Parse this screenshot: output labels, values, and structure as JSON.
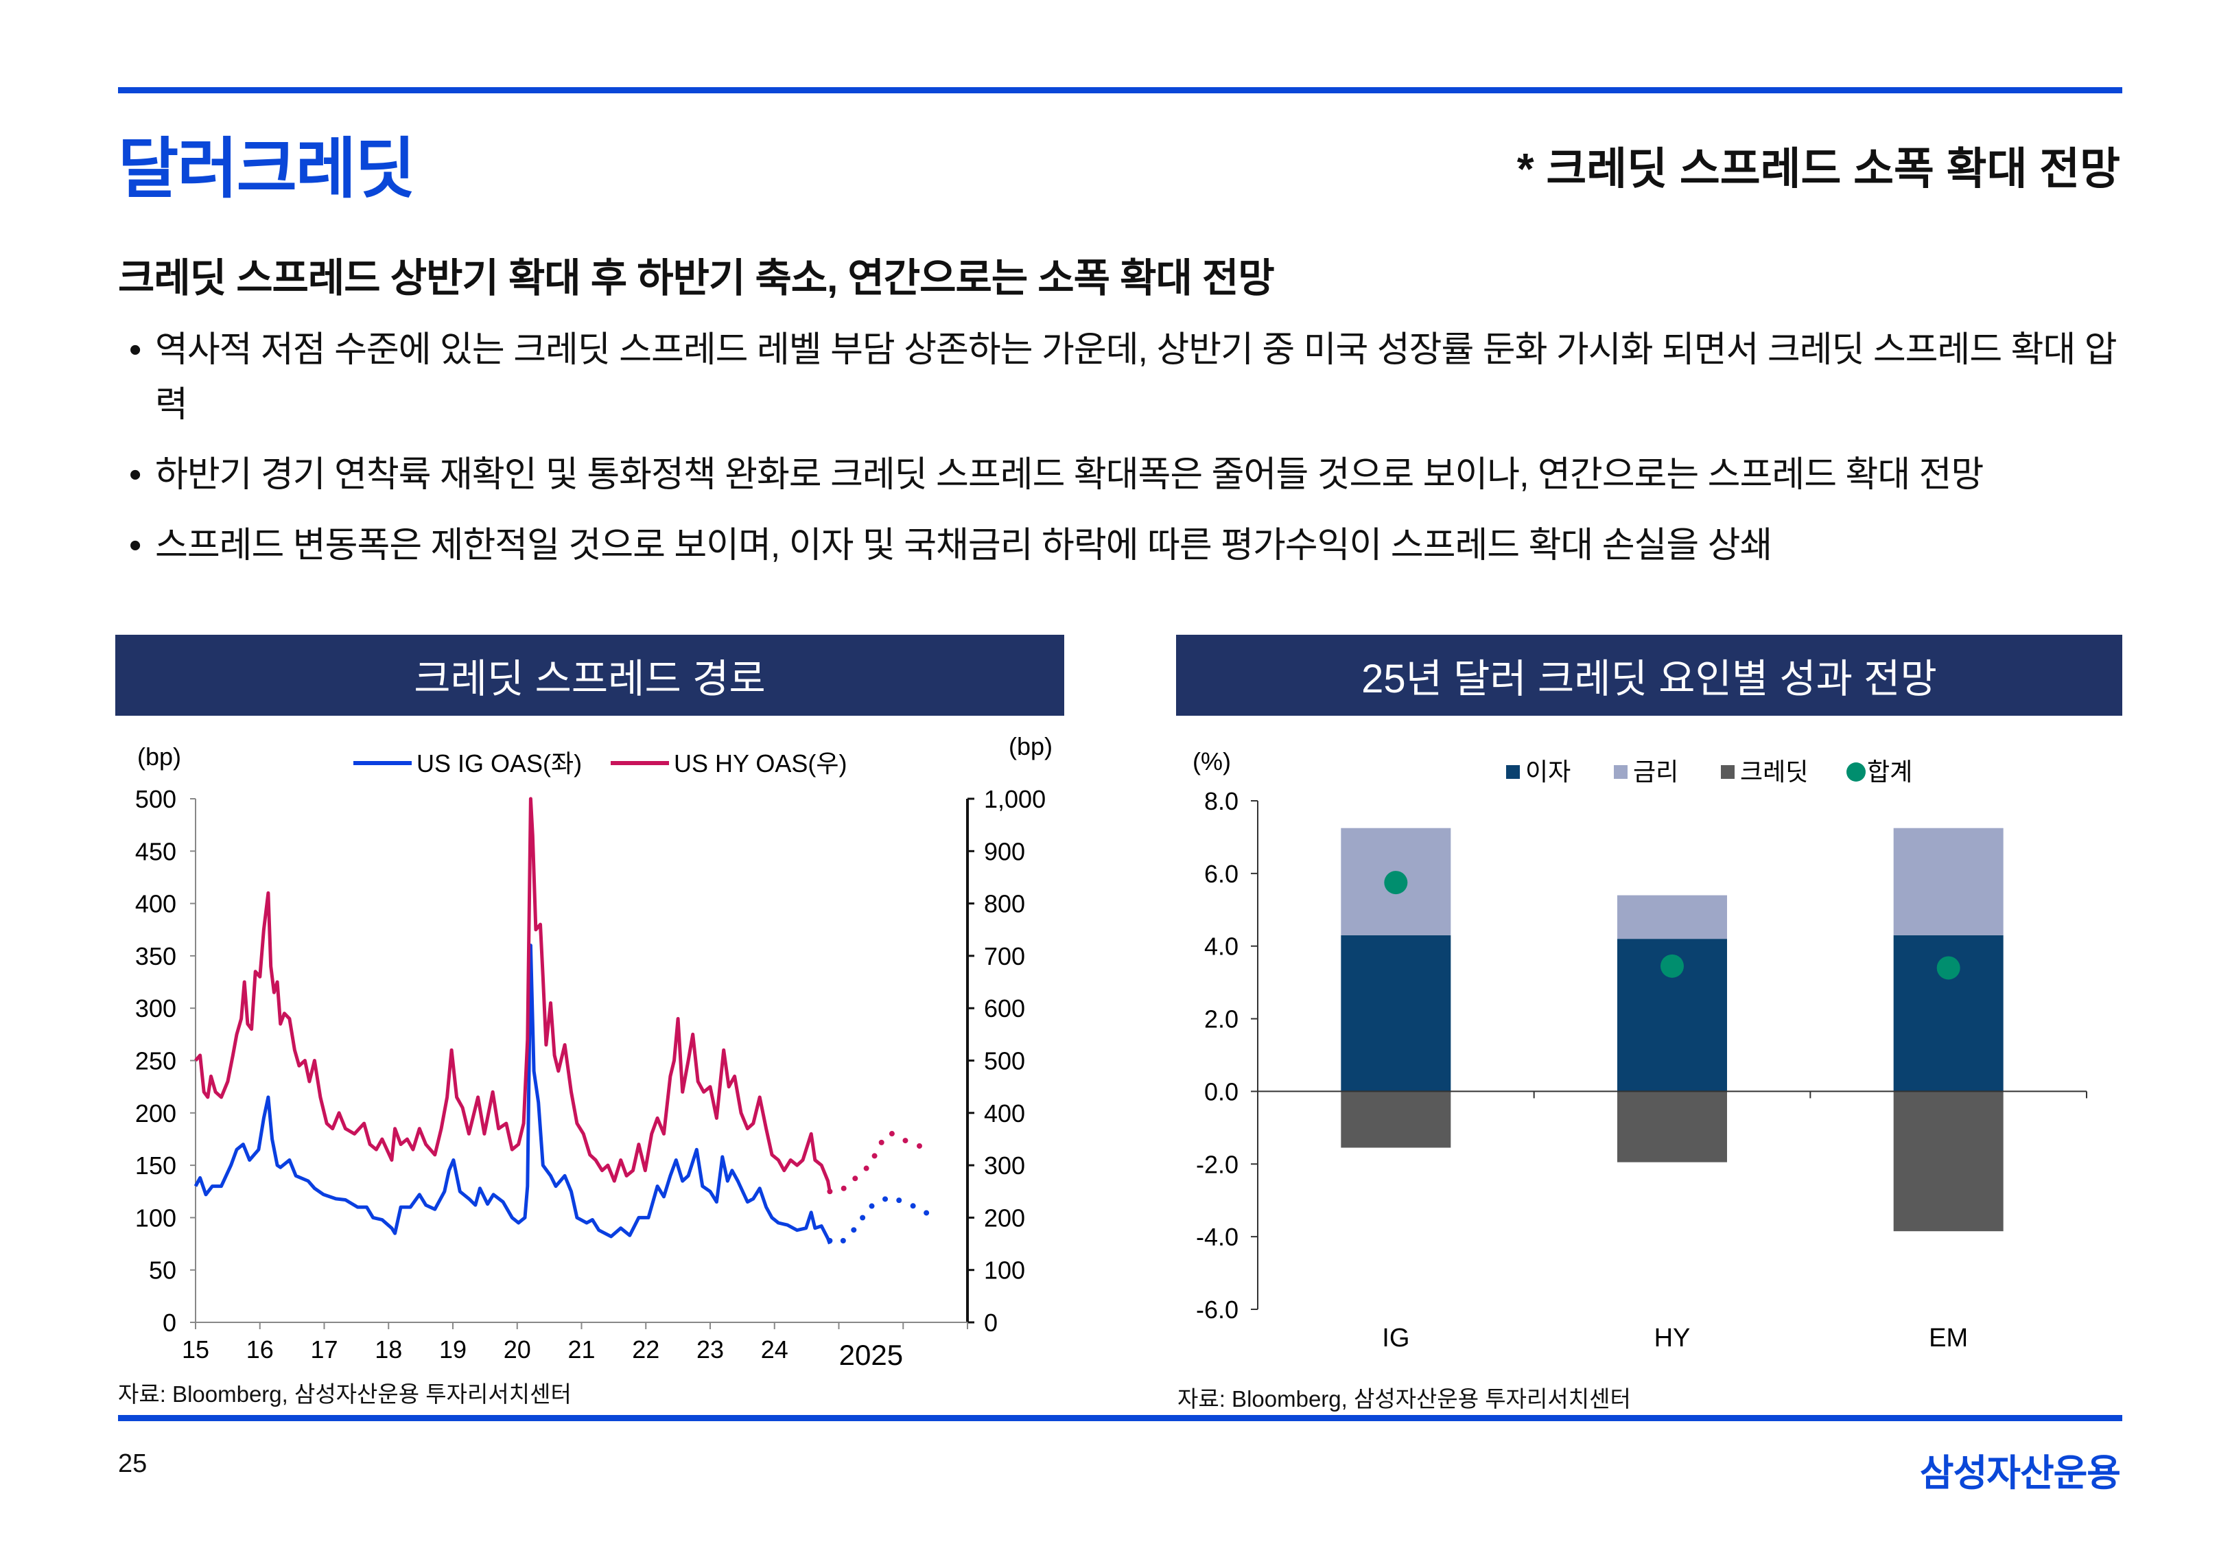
{
  "header": {
    "title": "달러크레딧",
    "tagline": "* 크레딧 스프레드 소폭 확대 전망"
  },
  "subtitle": "크레딧 스프레드 상반기 확대 후 하반기 축소, 연간으로는 소폭 확대 전망",
  "bullets": [
    {
      "marker": "•",
      "text": "역사적 저점 수준에 있는 크레딧 스프레드 레벨 부담 상존하는 가운데, 상반기 중 미국 성장률 둔화 가시화 되면서 크레딧 스프레드 확대 압력"
    },
    {
      "marker": "•",
      "text": "하반기 경기 연착륙 재확인 및 통화정책 완화로 크레딧 스프레드 확대폭은 줄어들 것으로 보이나, 연간으로는 스프레드 확대 전망"
    },
    {
      "marker": "•",
      "text": "스프레드 변동폭은 제한적일 것으로 보이며, 이자 및 국채금리 하락에 따른 평가수익이 스프레드 확대 손실을 상쇄"
    }
  ],
  "footer": {
    "page_number": "25",
    "logo": "삼성자산운용"
  },
  "colors": {
    "brand_blue": "#0a47d8",
    "header_navy": "#213366",
    "ig": "#0a3fe0",
    "hy": "#c8135a",
    "interest": "#0a416f",
    "rates": "#9ea7c7",
    "credit": "#5a5a5a",
    "total": "#008e6e"
  },
  "chart_data": [
    {
      "type": "line",
      "title": "크레딧 스프레드 경로",
      "source": "자료: Bloomberg, 삼성자산운용 투자리서치센터",
      "ylabel_left": "(bp)",
      "ylabel_right": "(bp)",
      "xlim": [
        2015,
        2027
      ],
      "ylim_left": [
        0,
        500
      ],
      "ylim_right": [
        0,
        1000
      ],
      "yticks_left": [
        "0",
        "50",
        "100",
        "150",
        "200",
        "250",
        "300",
        "350",
        "400",
        "450",
        "500"
      ],
      "yticks_right": [
        "0",
        "100",
        "200",
        "300",
        "400",
        "500",
        "600",
        "700",
        "800",
        "900",
        "1,000"
      ],
      "xticks": [
        {
          "x": 2015,
          "label": "15"
        },
        {
          "x": 2016,
          "label": "16"
        },
        {
          "x": 2017,
          "label": "17"
        },
        {
          "x": 2018,
          "label": "18"
        },
        {
          "x": 2019,
          "label": "19"
        },
        {
          "x": 2020,
          "label": "20"
        },
        {
          "x": 2021,
          "label": "21"
        },
        {
          "x": 2022,
          "label": "22"
        },
        {
          "x": 2023,
          "label": "23"
        },
        {
          "x": 2024,
          "label": "24"
        }
      ],
      "xtick_forecast_label": {
        "x": 2025.5,
        "label": "2025"
      },
      "grid": false,
      "legend_position": "top",
      "series": [
        {
          "name": "US IG OAS(좌)",
          "axis": "left",
          "points": [
            [
              2015.0,
              130
            ],
            [
              2015.07,
              138
            ],
            [
              2015.16,
              122
            ],
            [
              2015.26,
              130
            ],
            [
              2015.4,
              130
            ],
            [
              2015.55,
              150
            ],
            [
              2015.64,
              165
            ],
            [
              2015.74,
              170
            ],
            [
              2015.84,
              155
            ],
            [
              2015.98,
              165
            ],
            [
              2016.06,
              195
            ],
            [
              2016.13,
              215
            ],
            [
              2016.19,
              175
            ],
            [
              2016.27,
              150
            ],
            [
              2016.32,
              148
            ],
            [
              2016.46,
              155
            ],
            [
              2016.56,
              140
            ],
            [
              2016.75,
              135
            ],
            [
              2016.85,
              128
            ],
            [
              2016.99,
              122
            ],
            [
              2017.18,
              118
            ],
            [
              2017.33,
              117
            ],
            [
              2017.52,
              110
            ],
            [
              2017.66,
              110
            ],
            [
              2017.76,
              100
            ],
            [
              2017.9,
              98
            ],
            [
              2018.05,
              90
            ],
            [
              2018.1,
              85
            ],
            [
              2018.19,
              110
            ],
            [
              2018.34,
              110
            ],
            [
              2018.48,
              122
            ],
            [
              2018.58,
              112
            ],
            [
              2018.72,
              108
            ],
            [
              2018.87,
              125
            ],
            [
              2018.94,
              145
            ],
            [
              2019.01,
              155
            ],
            [
              2019.11,
              125
            ],
            [
              2019.25,
              118
            ],
            [
              2019.35,
              112
            ],
            [
              2019.42,
              128
            ],
            [
              2019.54,
              113
            ],
            [
              2019.63,
              122
            ],
            [
              2019.78,
              115
            ],
            [
              2019.92,
              100
            ],
            [
              2020.02,
              95
            ],
            [
              2020.12,
              100
            ],
            [
              2020.16,
              130
            ],
            [
              2020.21,
              360
            ],
            [
              2020.26,
              240
            ],
            [
              2020.33,
              210
            ],
            [
              2020.4,
              150
            ],
            [
              2020.52,
              140
            ],
            [
              2020.6,
              130
            ],
            [
              2020.74,
              140
            ],
            [
              2020.84,
              125
            ],
            [
              2020.93,
              100
            ],
            [
              2021.08,
              95
            ],
            [
              2021.17,
              98
            ],
            [
              2021.27,
              88
            ],
            [
              2021.46,
              82
            ],
            [
              2021.61,
              90
            ],
            [
              2021.75,
              83
            ],
            [
              2021.89,
              100
            ],
            [
              2022.04,
              100
            ],
            [
              2022.18,
              130
            ],
            [
              2022.28,
              120
            ],
            [
              2022.38,
              140
            ],
            [
              2022.47,
              155
            ],
            [
              2022.57,
              135
            ],
            [
              2022.66,
              140
            ],
            [
              2022.79,
              165
            ],
            [
              2022.88,
              130
            ],
            [
              2023.0,
              125
            ],
            [
              2023.1,
              115
            ],
            [
              2023.19,
              158
            ],
            [
              2023.27,
              135
            ],
            [
              2023.34,
              145
            ],
            [
              2023.43,
              135
            ],
            [
              2023.58,
              115
            ],
            [
              2023.67,
              118
            ],
            [
              2023.77,
              128
            ],
            [
              2023.87,
              110
            ],
            [
              2023.96,
              100
            ],
            [
              2024.06,
              95
            ],
            [
              2024.2,
              93
            ],
            [
              2024.35,
              88
            ],
            [
              2024.49,
              90
            ],
            [
              2024.57,
              105
            ],
            [
              2024.63,
              90
            ],
            [
              2024.73,
              92
            ],
            [
              2024.83,
              80
            ],
            [
              2024.86,
              75
            ]
          ],
          "forecast": [
            [
              2024.86,
              78
            ],
            [
              2025.02,
              75
            ],
            [
              2025.26,
              90
            ],
            [
              2025.48,
              110
            ],
            [
              2025.79,
              120
            ],
            [
              2026.13,
              112
            ],
            [
              2026.44,
              102
            ]
          ]
        },
        {
          "name": "US HY OAS(우)",
          "axis": "right",
          "points": [
            [
              2015.0,
              500
            ],
            [
              2015.07,
              510
            ],
            [
              2015.13,
              440
            ],
            [
              2015.19,
              430
            ],
            [
              2015.24,
              470
            ],
            [
              2015.31,
              440
            ],
            [
              2015.4,
              430
            ],
            [
              2015.5,
              460
            ],
            [
              2015.58,
              510
            ],
            [
              2015.64,
              550
            ],
            [
              2015.71,
              580
            ],
            [
              2015.76,
              650
            ],
            [
              2015.81,
              570
            ],
            [
              2015.87,
              560
            ],
            [
              2015.93,
              670
            ],
            [
              2016.0,
              660
            ],
            [
              2016.06,
              750
            ],
            [
              2016.13,
              820
            ],
            [
              2016.17,
              680
            ],
            [
              2016.22,
              630
            ],
            [
              2016.27,
              650
            ],
            [
              2016.32,
              570
            ],
            [
              2016.38,
              590
            ],
            [
              2016.46,
              580
            ],
            [
              2016.54,
              520
            ],
            [
              2016.61,
              490
            ],
            [
              2016.7,
              500
            ],
            [
              2016.77,
              460
            ],
            [
              2016.85,
              500
            ],
            [
              2016.94,
              430
            ],
            [
              2017.04,
              380
            ],
            [
              2017.13,
              370
            ],
            [
              2017.23,
              400
            ],
            [
              2017.33,
              370
            ],
            [
              2017.47,
              360
            ],
            [
              2017.62,
              380
            ],
            [
              2017.71,
              340
            ],
            [
              2017.81,
              330
            ],
            [
              2017.9,
              350
            ],
            [
              2018.05,
              310
            ],
            [
              2018.1,
              370
            ],
            [
              2018.19,
              340
            ],
            [
              2018.29,
              350
            ],
            [
              2018.38,
              330
            ],
            [
              2018.48,
              370
            ],
            [
              2018.58,
              340
            ],
            [
              2018.72,
              320
            ],
            [
              2018.82,
              370
            ],
            [
              2018.91,
              430
            ],
            [
              2018.98,
              520
            ],
            [
              2019.06,
              430
            ],
            [
              2019.15,
              410
            ],
            [
              2019.25,
              360
            ],
            [
              2019.39,
              430
            ],
            [
              2019.49,
              360
            ],
            [
              2019.62,
              440
            ],
            [
              2019.71,
              370
            ],
            [
              2019.83,
              380
            ],
            [
              2019.92,
              330
            ],
            [
              2020.02,
              340
            ],
            [
              2020.1,
              380
            ],
            [
              2020.16,
              540
            ],
            [
              2020.21,
              1000
            ],
            [
              2020.24,
              930
            ],
            [
              2020.29,
              750
            ],
            [
              2020.36,
              760
            ],
            [
              2020.4,
              660
            ],
            [
              2020.45,
              530
            ],
            [
              2020.52,
              610
            ],
            [
              2020.58,
              510
            ],
            [
              2020.64,
              480
            ],
            [
              2020.74,
              530
            ],
            [
              2020.84,
              440
            ],
            [
              2020.93,
              380
            ],
            [
              2021.03,
              360
            ],
            [
              2021.13,
              320
            ],
            [
              2021.22,
              310
            ],
            [
              2021.32,
              290
            ],
            [
              2021.41,
              300
            ],
            [
              2021.51,
              270
            ],
            [
              2021.61,
              310
            ],
            [
              2021.7,
              280
            ],
            [
              2021.8,
              290
            ],
            [
              2021.89,
              340
            ],
            [
              2021.99,
              290
            ],
            [
              2022.09,
              360
            ],
            [
              2022.18,
              390
            ],
            [
              2022.28,
              360
            ],
            [
              2022.38,
              470
            ],
            [
              2022.44,
              500
            ],
            [
              2022.5,
              580
            ],
            [
              2022.57,
              440
            ],
            [
              2022.66,
              500
            ],
            [
              2022.73,
              550
            ],
            [
              2022.81,
              460
            ],
            [
              2022.9,
              440
            ],
            [
              2023.0,
              450
            ],
            [
              2023.1,
              390
            ],
            [
              2023.21,
              520
            ],
            [
              2023.29,
              450
            ],
            [
              2023.38,
              470
            ],
            [
              2023.48,
              400
            ],
            [
              2023.58,
              370
            ],
            [
              2023.67,
              380
            ],
            [
              2023.77,
              430
            ],
            [
              2023.87,
              370
            ],
            [
              2023.96,
              320
            ],
            [
              2024.06,
              310
            ],
            [
              2024.15,
              290
            ],
            [
              2024.25,
              310
            ],
            [
              2024.35,
              300
            ],
            [
              2024.44,
              310
            ],
            [
              2024.57,
              360
            ],
            [
              2024.63,
              310
            ],
            [
              2024.73,
              300
            ],
            [
              2024.83,
              270
            ],
            [
              2024.86,
              250
            ]
          ],
          "forecast": [
            [
              2024.86,
              250
            ],
            [
              2025.02,
              250
            ],
            [
              2025.21,
              270
            ],
            [
              2025.48,
              300
            ],
            [
              2025.69,
              350
            ],
            [
              2025.8,
              362
            ],
            [
              2026.07,
              345
            ],
            [
              2026.41,
              330
            ]
          ]
        }
      ]
    },
    {
      "type": "bar",
      "stacked": true,
      "title": "25년 달러 크레딧 요인별 성과 전망",
      "source": "자료: Bloomberg, 삼성자산운용 투자리서치센터",
      "ylabel": "(%)",
      "ylim": [
        -6,
        8
      ],
      "yticks": [
        "-6.0",
        "-4.0",
        "-2.0",
        "0.0",
        "2.0",
        "4.0",
        "6.0",
        "8.0"
      ],
      "categories": [
        "IG",
        "HY",
        "EM"
      ],
      "legend_position": "top",
      "series": [
        {
          "name": "이자",
          "kind": "bar",
          "values": [
            4.3,
            4.2,
            4.3
          ]
        },
        {
          "name": "금리",
          "kind": "bar",
          "values": [
            2.95,
            1.2,
            2.95
          ]
        },
        {
          "name": "크레딧",
          "kind": "bar",
          "values": [
            -1.55,
            -1.95,
            -3.85
          ]
        },
        {
          "name": "합계",
          "kind": "dot",
          "values": [
            5.75,
            3.45,
            3.4
          ]
        }
      ]
    }
  ]
}
